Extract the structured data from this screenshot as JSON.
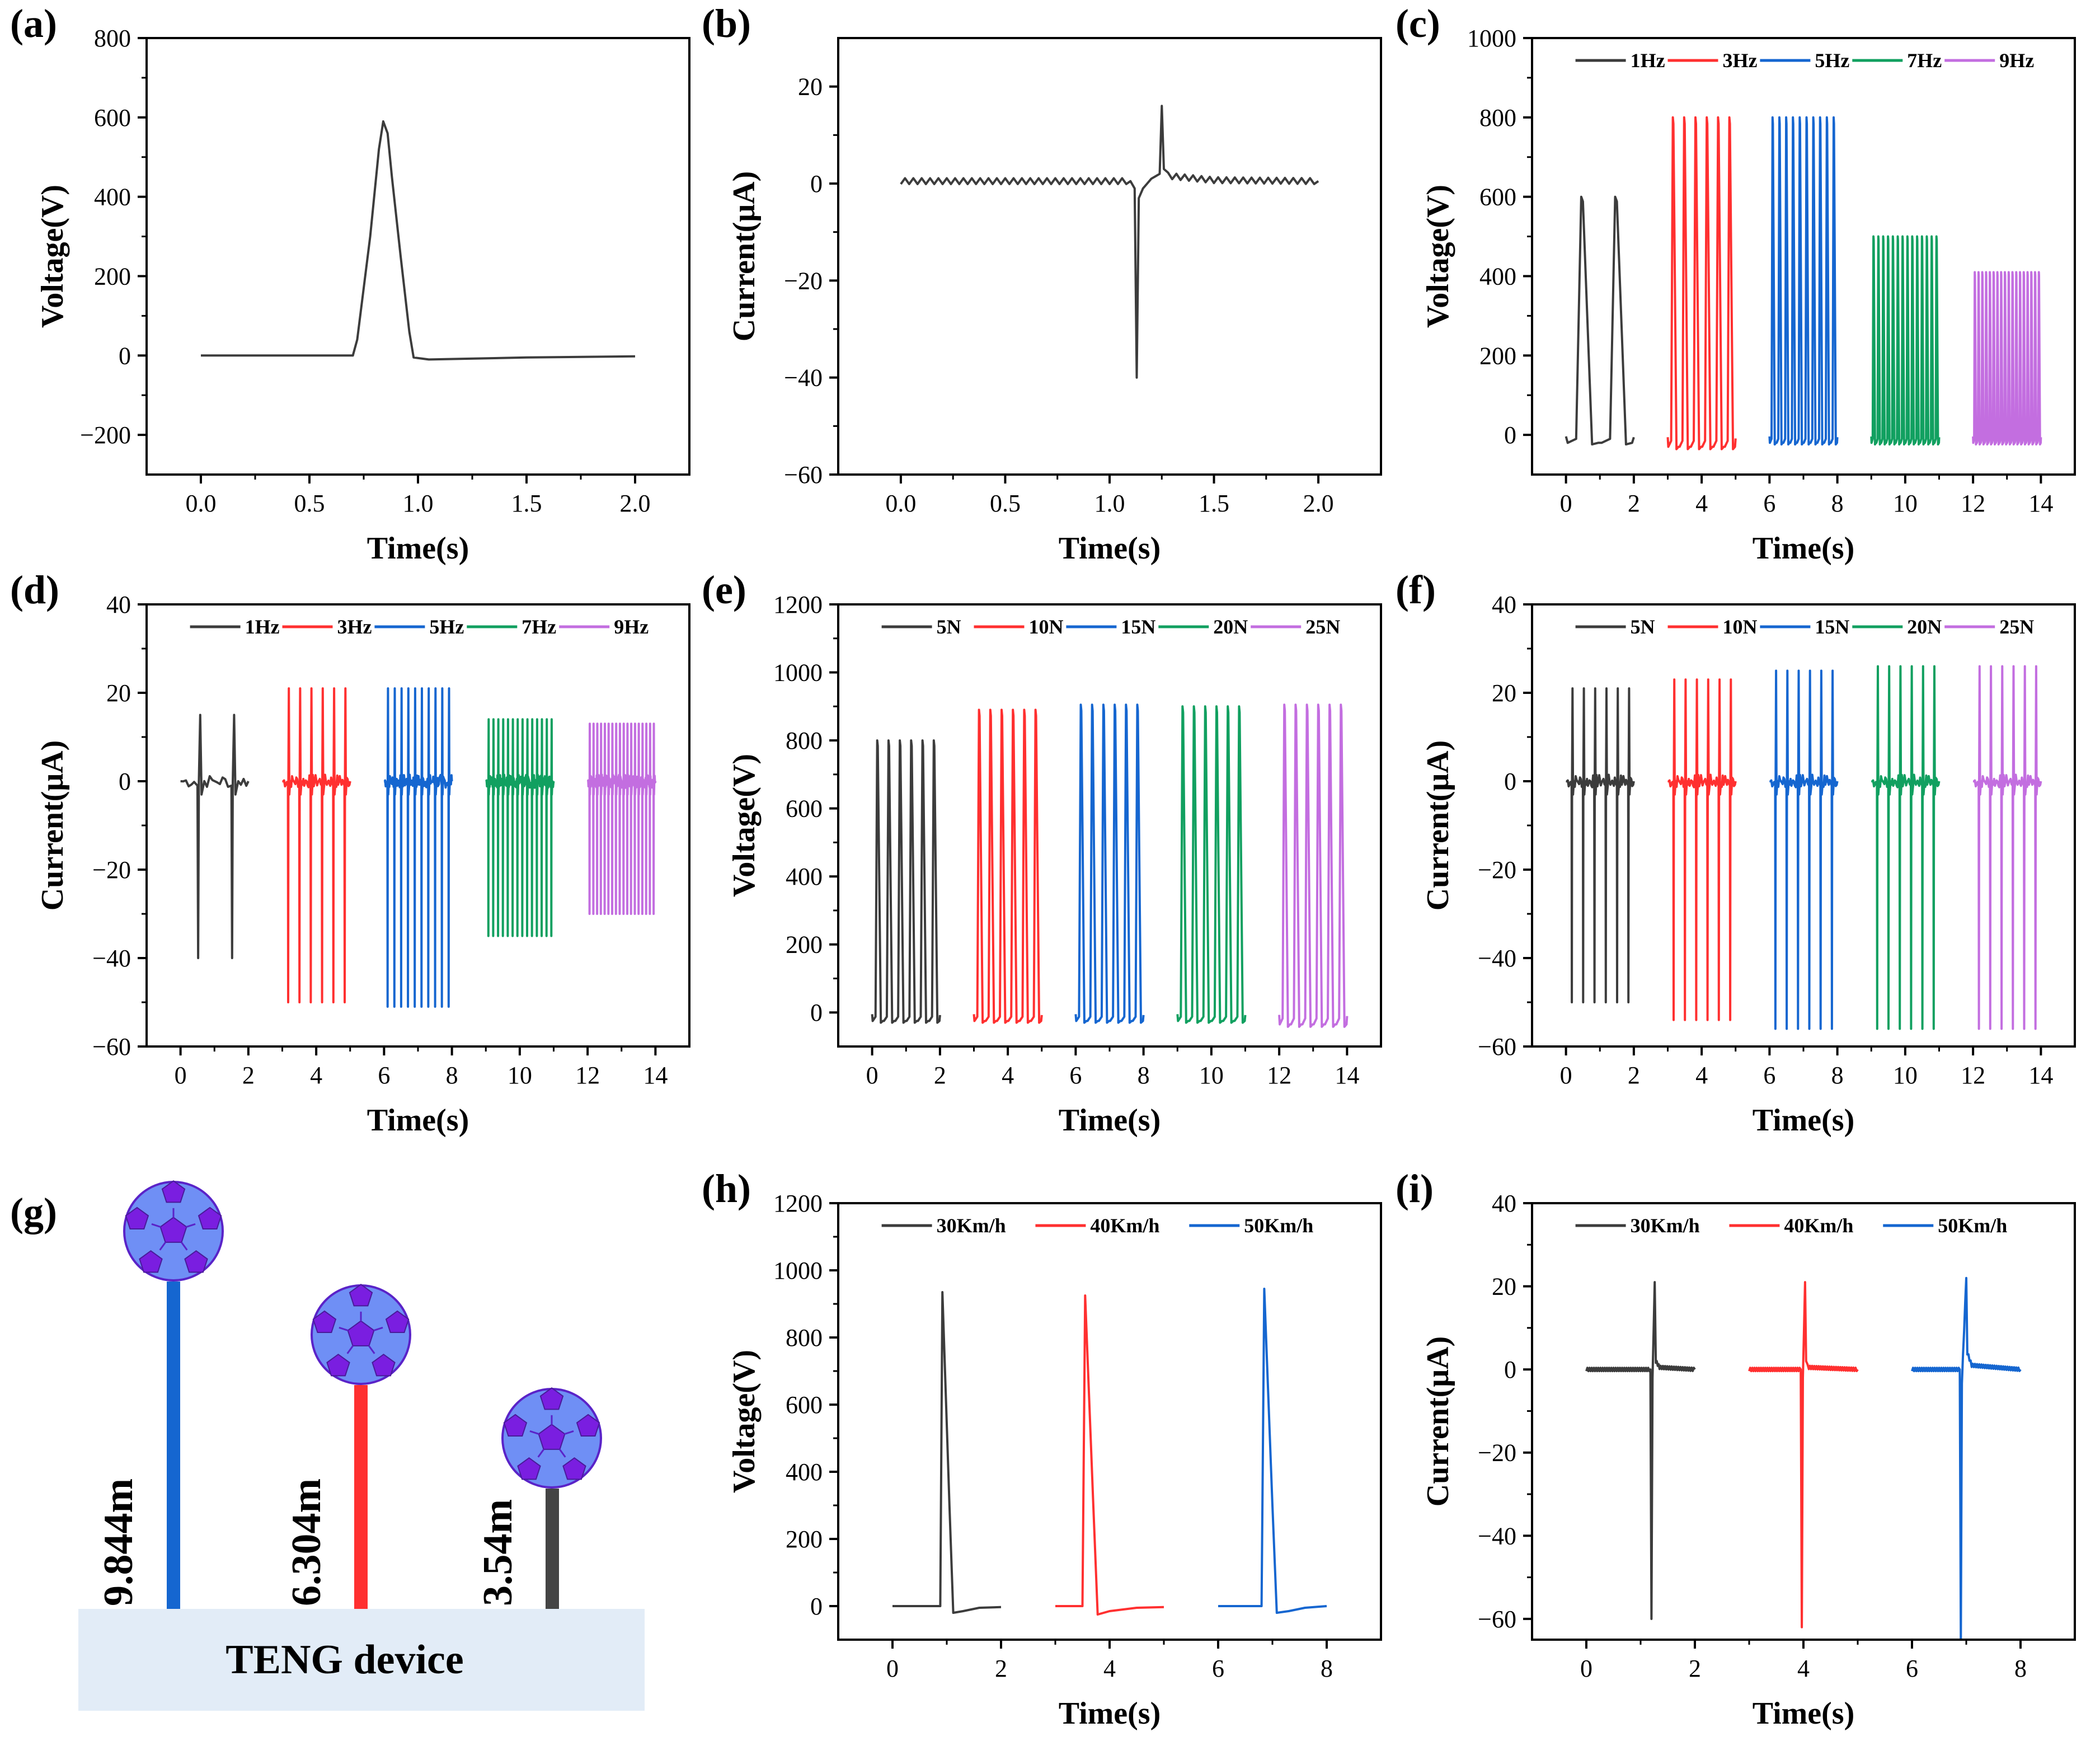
{
  "colors": {
    "black": "#3c3c3c",
    "red": "#ff3030",
    "blue": "#1566d0",
    "green": "#11a060",
    "purple": "#c36ee0",
    "device": "#e2ecf7"
  },
  "chart_data": [
    {
      "id": "a",
      "panel_label": "(a)",
      "type": "line",
      "xlabel": "Time(s)",
      "ylabel": "Voltage(V)",
      "xlim": [
        -0.25,
        2.25
      ],
      "ylim": [
        -300,
        800
      ],
      "xticks": [
        0.0,
        0.5,
        1.0,
        1.5,
        2.0
      ],
      "xtick_labels": [
        "0.0",
        "0.5",
        "1.0",
        "1.5",
        "2.0"
      ],
      "yticks": [
        -200,
        0,
        200,
        400,
        600,
        800
      ],
      "ytick_labels": [
        "−200",
        "0",
        "200",
        "400",
        "600",
        "800"
      ],
      "legend": [],
      "series": [
        {
          "name": "voltage",
          "color": "black",
          "points": [
            [
              0,
              0
            ],
            [
              0.7,
              0
            ],
            [
              0.72,
              40
            ],
            [
              0.78,
              300
            ],
            [
              0.82,
              520
            ],
            [
              0.84,
              590
            ],
            [
              0.86,
              560
            ],
            [
              0.88,
              450
            ],
            [
              0.92,
              250
            ],
            [
              0.96,
              60
            ],
            [
              0.98,
              -5
            ],
            [
              1.05,
              -10
            ],
            [
              1.5,
              -5
            ],
            [
              2.0,
              -2
            ]
          ]
        }
      ]
    },
    {
      "id": "b",
      "panel_label": "(b)",
      "type": "line",
      "xlabel": "Time(s)",
      "ylabel": "Current(μA)",
      "xlim": [
        -0.3,
        2.3
      ],
      "ylim": [
        -60,
        30
      ],
      "xticks": [
        0.0,
        0.5,
        1.0,
        1.5,
        2.0
      ],
      "xtick_labels": [
        "0.0",
        "0.5",
        "1.0",
        "1.5",
        "2.0"
      ],
      "yticks": [
        -60,
        -40,
        -20,
        0,
        20
      ],
      "ytick_labels": [
        "−60",
        "−40",
        "−20",
        "0",
        "20"
      ],
      "legend": [],
      "series": [
        {
          "name": "current",
          "color": "black",
          "noise": 0.6,
          "points": [
            [
              0,
              0.5
            ],
            [
              1.1,
              0.5
            ],
            [
              1.12,
              -1
            ],
            [
              1.13,
              -40
            ],
            [
              1.14,
              -3
            ],
            [
              1.16,
              -1
            ],
            [
              1.2,
              1
            ],
            [
              1.24,
              2
            ],
            [
              1.25,
              16
            ],
            [
              1.26,
              3
            ],
            [
              1.3,
              1.5
            ],
            [
              1.5,
              0.7
            ],
            [
              2.0,
              0.5
            ]
          ]
        }
      ]
    },
    {
      "id": "c",
      "panel_label": "(c)",
      "type": "line",
      "xlabel": "Time(s)",
      "ylabel": "Voltage(V)",
      "xlim": [
        -1,
        15
      ],
      "ylim": [
        -100,
        1000
      ],
      "xticks": [
        0,
        2,
        4,
        6,
        8,
        10,
        12,
        14
      ],
      "xtick_labels": [
        "0",
        "2",
        "4",
        "6",
        "8",
        "10",
        "12",
        "14"
      ],
      "yticks": [
        0,
        200,
        400,
        600,
        800,
        1000
      ],
      "ytick_labels": [
        "0",
        "200",
        "400",
        "600",
        "800",
        "1000"
      ],
      "legend": [
        "1Hz",
        "3Hz",
        "5Hz",
        "7Hz",
        "9Hz"
      ],
      "series": [
        {
          "name": "1Hz",
          "color": "black",
          "pulse": {
            "start": 0,
            "end": 2,
            "count": 2,
            "peak": 600,
            "base": -20
          }
        },
        {
          "name": "3Hz",
          "color": "red",
          "pulse": {
            "start": 3,
            "end": 5,
            "count": 6,
            "peak": 800,
            "base": -30
          }
        },
        {
          "name": "5Hz",
          "color": "blue",
          "pulse": {
            "start": 6,
            "end": 8,
            "count": 10,
            "peak": 800,
            "base": -20
          }
        },
        {
          "name": "7Hz",
          "color": "green",
          "pulse": {
            "start": 9,
            "end": 11,
            "count": 14,
            "peak": 500,
            "base": -20
          }
        },
        {
          "name": "9Hz",
          "color": "purple",
          "pulse": {
            "start": 12,
            "end": 14,
            "count": 18,
            "peak": 410,
            "base": -20
          }
        }
      ]
    },
    {
      "id": "d",
      "panel_label": "(d)",
      "type": "line",
      "xlabel": "Time(s)",
      "ylabel": "Current(μA)",
      "xlim": [
        -1,
        15
      ],
      "ylim": [
        -60,
        40
      ],
      "xticks": [
        0,
        2,
        4,
        6,
        8,
        10,
        12,
        14
      ],
      "xtick_labels": [
        "0",
        "2",
        "4",
        "6",
        "8",
        "10",
        "12",
        "14"
      ],
      "yticks": [
        -60,
        -40,
        -20,
        0,
        20,
        40
      ],
      "ytick_labels": [
        "−60",
        "−40",
        "−20",
        "0",
        "20",
        "40"
      ],
      "legend": [
        "1Hz",
        "3Hz",
        "5Hz",
        "7Hz",
        "9Hz"
      ],
      "series": [
        {
          "name": "1Hz",
          "color": "black",
          "spike": {
            "start": 0,
            "end": 2,
            "count": 2,
            "pos": 15,
            "neg": -40
          }
        },
        {
          "name": "3Hz",
          "color": "red",
          "spike": {
            "start": 3,
            "end": 5,
            "count": 6,
            "pos": 21,
            "neg": -50
          }
        },
        {
          "name": "5Hz",
          "color": "blue",
          "spike": {
            "start": 6,
            "end": 8,
            "count": 10,
            "pos": 21,
            "neg": -51
          }
        },
        {
          "name": "7Hz",
          "color": "green",
          "spike": {
            "start": 9,
            "end": 11,
            "count": 14,
            "pos": 14,
            "neg": -35
          }
        },
        {
          "name": "9Hz",
          "color": "purple",
          "spike": {
            "start": 12,
            "end": 14,
            "count": 18,
            "pos": 13,
            "neg": -30
          }
        }
      ]
    },
    {
      "id": "e",
      "panel_label": "(e)",
      "type": "line",
      "xlabel": "Time(s)",
      "ylabel": "Voltage(V)",
      "xlim": [
        -1,
        15
      ],
      "ylim": [
        -100,
        1200
      ],
      "xticks": [
        0,
        2,
        4,
        6,
        8,
        10,
        12,
        14
      ],
      "xtick_labels": [
        "0",
        "2",
        "4",
        "6",
        "8",
        "10",
        "12",
        "14"
      ],
      "yticks": [
        0,
        200,
        400,
        600,
        800,
        1000,
        1200
      ],
      "ytick_labels": [
        "0",
        "200",
        "400",
        "600",
        "800",
        "1000",
        "1200"
      ],
      "legend": [
        "5N",
        "10N",
        "15N",
        "20N",
        "25N"
      ],
      "series": [
        {
          "name": "5N",
          "color": "black",
          "pulse": {
            "start": 0,
            "end": 2,
            "count": 6,
            "peak": 800,
            "base": -25
          }
        },
        {
          "name": "10N",
          "color": "red",
          "pulse": {
            "start": 3,
            "end": 5,
            "count": 6,
            "peak": 890,
            "base": -25
          }
        },
        {
          "name": "15N",
          "color": "blue",
          "pulse": {
            "start": 6,
            "end": 8,
            "count": 6,
            "peak": 905,
            "base": -25
          }
        },
        {
          "name": "20N",
          "color": "green",
          "pulse": {
            "start": 9,
            "end": 11,
            "count": 6,
            "peak": 900,
            "base": -25
          }
        },
        {
          "name": "25N",
          "color": "purple",
          "pulse": {
            "start": 12,
            "end": 14,
            "count": 6,
            "peak": 905,
            "base": -35
          }
        }
      ]
    },
    {
      "id": "f",
      "panel_label": "(f)",
      "type": "line",
      "xlabel": "Time(s)",
      "ylabel": "Current(μA)",
      "xlim": [
        -1,
        15
      ],
      "ylim": [
        -60,
        40
      ],
      "xticks": [
        0,
        2,
        4,
        6,
        8,
        10,
        12,
        14
      ],
      "xtick_labels": [
        "0",
        "2",
        "4",
        "6",
        "8",
        "10",
        "12",
        "14"
      ],
      "yticks": [
        -60,
        -40,
        -20,
        0,
        20,
        40
      ],
      "ytick_labels": [
        "−60",
        "−40",
        "−20",
        "0",
        "20",
        "40"
      ],
      "legend": [
        "5N",
        "10N",
        "15N",
        "20N",
        "25N"
      ],
      "series": [
        {
          "name": "5N",
          "color": "black",
          "spike": {
            "start": 0,
            "end": 2,
            "count": 6,
            "pos": 21,
            "neg": -50
          }
        },
        {
          "name": "10N",
          "color": "red",
          "spike": {
            "start": 3,
            "end": 5,
            "count": 6,
            "pos": 23,
            "neg": -54
          }
        },
        {
          "name": "15N",
          "color": "blue",
          "spike": {
            "start": 6,
            "end": 8,
            "count": 6,
            "pos": 25,
            "neg": -56
          }
        },
        {
          "name": "20N",
          "color": "green",
          "spike": {
            "start": 9,
            "end": 11,
            "count": 6,
            "pos": 26,
            "neg": -56
          }
        },
        {
          "name": "25N",
          "color": "purple",
          "spike": {
            "start": 12,
            "end": 14,
            "count": 6,
            "pos": 26,
            "neg": -56
          }
        }
      ]
    },
    {
      "id": "h",
      "panel_label": "(h)",
      "type": "line",
      "xlabel": "Time(s)",
      "ylabel": "Voltage(V)",
      "xlim": [
        -1,
        9
      ],
      "ylim": [
        -100,
        1200
      ],
      "xticks": [
        0,
        2,
        4,
        6,
        8
      ],
      "xtick_labels": [
        "0",
        "2",
        "4",
        "6",
        "8"
      ],
      "yticks": [
        0,
        200,
        400,
        600,
        800,
        1000,
        1200
      ],
      "ytick_labels": [
        "0",
        "200",
        "400",
        "600",
        "800",
        "1000",
        "1200"
      ],
      "legend": [
        "30Km/h",
        "40Km/h",
        "50Km/h"
      ],
      "series": [
        {
          "name": "30Km/h",
          "color": "black",
          "points": [
            [
              0,
              0
            ],
            [
              0.88,
              0
            ],
            [
              0.92,
              935
            ],
            [
              1.05,
              300
            ],
            [
              1.12,
              -20
            ],
            [
              1.3,
              -15
            ],
            [
              1.6,
              -5
            ],
            [
              2.0,
              -3
            ]
          ]
        },
        {
          "name": "40Km/h",
          "color": "red",
          "points": [
            [
              3,
              0
            ],
            [
              3.5,
              0
            ],
            [
              3.55,
              925
            ],
            [
              3.7,
              300
            ],
            [
              3.78,
              -25
            ],
            [
              4.0,
              -15
            ],
            [
              4.5,
              -5
            ],
            [
              5.0,
              -3
            ]
          ]
        },
        {
          "name": "50Km/h",
          "color": "blue",
          "points": [
            [
              6,
              0
            ],
            [
              6.8,
              0
            ],
            [
              6.85,
              945
            ],
            [
              7.0,
              300
            ],
            [
              7.08,
              -20
            ],
            [
              7.3,
              -15
            ],
            [
              7.6,
              -5
            ],
            [
              8.0,
              0
            ]
          ]
        }
      ]
    },
    {
      "id": "i",
      "panel_label": "(i)",
      "type": "line",
      "xlabel": "Time(s)",
      "ylabel": "Current(μA)",
      "xlim": [
        -1,
        9
      ],
      "ylim": [
        -65,
        40
      ],
      "xticks": [
        0,
        2,
        4,
        6,
        8
      ],
      "xtick_labels": [
        "0",
        "2",
        "4",
        "6",
        "8"
      ],
      "yticks": [
        -60,
        -40,
        -20,
        0,
        20,
        40
      ],
      "ytick_labels": [
        "−60",
        "−40",
        "−20",
        "0",
        "20",
        "40"
      ],
      "legend": [
        "30Km/h",
        "40Km/h",
        "50Km/h"
      ],
      "series": [
        {
          "name": "30Km/h",
          "color": "black",
          "noise": 0.4,
          "points": [
            [
              0,
              0
            ],
            [
              1.18,
              0
            ],
            [
              1.2,
              -60
            ],
            [
              1.22,
              -2
            ],
            [
              1.26,
              21
            ],
            [
              1.28,
              2
            ],
            [
              1.35,
              0.5
            ],
            [
              2.0,
              0
            ]
          ]
        },
        {
          "name": "40Km/h",
          "color": "red",
          "noise": 0.4,
          "points": [
            [
              3,
              0
            ],
            [
              3.95,
              0
            ],
            [
              3.97,
              -62
            ],
            [
              3.99,
              -2
            ],
            [
              4.03,
              21
            ],
            [
              4.05,
              2
            ],
            [
              4.1,
              0.5
            ],
            [
              5.0,
              0
            ]
          ]
        },
        {
          "name": "50Km/h",
          "color": "blue",
          "noise": 0.4,
          "points": [
            [
              6,
              0
            ],
            [
              6.88,
              0
            ],
            [
              6.9,
              -65
            ],
            [
              6.92,
              -3
            ],
            [
              7.0,
              22
            ],
            [
              7.02,
              4
            ],
            [
              7.1,
              1
            ],
            [
              8.0,
              0
            ]
          ]
        }
      ]
    }
  ],
  "scene": {
    "panel_label": "(g)",
    "device_label": "TENG device",
    "drops": [
      {
        "label": "9.844m",
        "color": "blue"
      },
      {
        "label": "6.304m",
        "color": "red"
      },
      {
        "label": "3.54m",
        "color": "black"
      }
    ]
  }
}
